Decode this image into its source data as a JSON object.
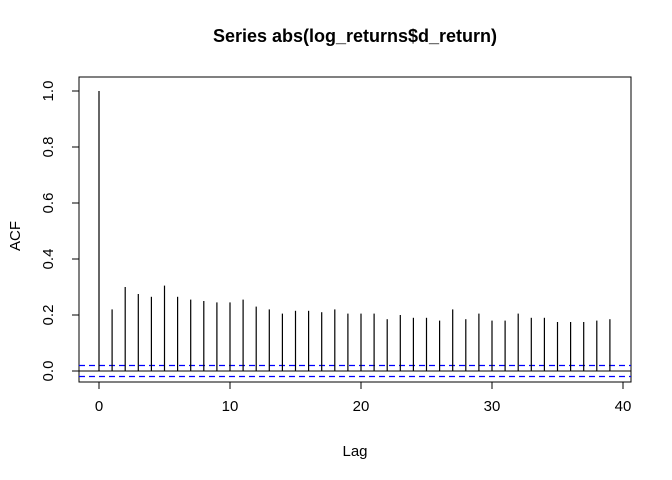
{
  "chart_data": {
    "type": "bar",
    "title": "Series  abs(log_returns$d_return)",
    "xlabel": "Lag",
    "ylabel": "ACF",
    "xlim": [
      0,
      40
    ],
    "ylim": [
      -0.05,
      1.05
    ],
    "x_ticks": [
      0,
      10,
      20,
      30,
      40
    ],
    "x_tick_labels": [
      "0",
      "10",
      "20",
      "30",
      "40"
    ],
    "y_ticks": [
      0.0,
      0.2,
      0.4,
      0.6,
      0.8,
      1.0
    ],
    "y_tick_labels": [
      "0.0",
      "0.2",
      "0.4",
      "0.6",
      "0.8",
      "1.0"
    ],
    "x": [
      0,
      1,
      2,
      3,
      4,
      5,
      6,
      7,
      8,
      9,
      10,
      11,
      12,
      13,
      14,
      15,
      16,
      17,
      18,
      19,
      20,
      21,
      22,
      23,
      24,
      25,
      26,
      27,
      28,
      29,
      30,
      31,
      32,
      33,
      34,
      35,
      36,
      37,
      38,
      39
    ],
    "values": [
      1.0,
      0.22,
      0.3,
      0.275,
      0.265,
      0.305,
      0.265,
      0.255,
      0.25,
      0.245,
      0.245,
      0.255,
      0.23,
      0.22,
      0.205,
      0.215,
      0.215,
      0.21,
      0.22,
      0.205,
      0.205,
      0.205,
      0.185,
      0.2,
      0.19,
      0.19,
      0.18,
      0.22,
      0.185,
      0.205,
      0.18,
      0.18,
      0.205,
      0.19,
      0.19,
      0.175,
      0.175,
      0.175,
      0.18,
      0.185
    ],
    "confidence_bound": 0.0196,
    "colors": {
      "bars": "#000000",
      "zero_line": "#000000",
      "confidence_lines": "#0000ff"
    },
    "grid": false
  }
}
